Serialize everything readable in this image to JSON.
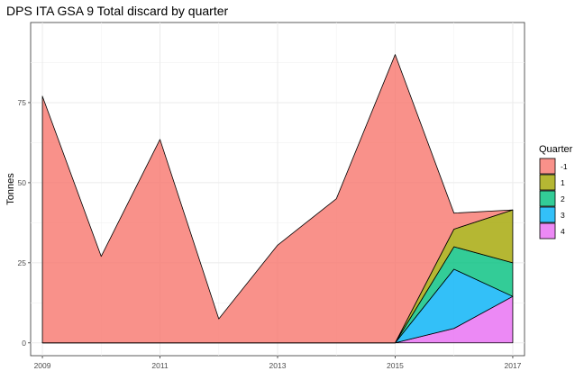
{
  "chart_data": {
    "type": "area",
    "stacked": true,
    "title": "DPS ITA GSA 9 Total discard by quarter",
    "xlabel": "",
    "ylabel": "Tonnes",
    "xlim": [
      2008.8,
      2017.2
    ],
    "ylim": [
      -4,
      100
    ],
    "x_ticks": [
      2009,
      2011,
      2013,
      2015,
      2017
    ],
    "y_ticks": [
      0,
      25,
      50,
      75
    ],
    "grid": true,
    "legend": {
      "title": "Quarter",
      "position": "right"
    },
    "x": [
      2009,
      2010,
      2011,
      2012,
      2013,
      2014,
      2015,
      2016,
      2017
    ],
    "series": [
      {
        "name": "-1",
        "color": "#F8766D",
        "values": [
          77,
          27,
          63.5,
          7.5,
          30.5,
          45,
          90,
          5,
          0
        ]
      },
      {
        "name": "1",
        "color": "#A3A500",
        "values": [
          0,
          0,
          0,
          0,
          0,
          0,
          0,
          5.5,
          16.5
        ]
      },
      {
        "name": "2",
        "color": "#00BF7D",
        "values": [
          0,
          0,
          0,
          0,
          0,
          0,
          0,
          7,
          10.5
        ]
      },
      {
        "name": "3",
        "color": "#00B0F6",
        "values": [
          0,
          0,
          0,
          0,
          0,
          0,
          0,
          18.5,
          0
        ]
      },
      {
        "name": "4",
        "color": "#E76BF3",
        "values": [
          0,
          0,
          0,
          0,
          0,
          0,
          0,
          4.5,
          14.5
        ]
      }
    ]
  }
}
